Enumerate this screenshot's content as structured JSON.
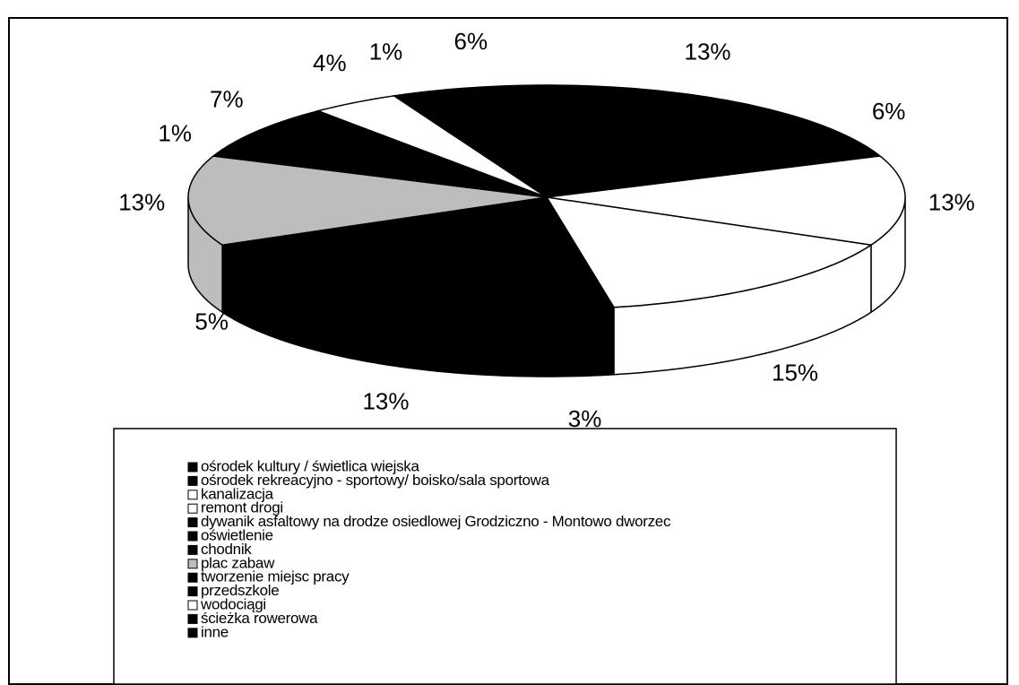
{
  "chart_data": {
    "type": "pie",
    "categories": [
      "ośrodek kultury / świetlica wiejska",
      "ośrodek rekreacyjno - sportowy/ boisko/sala sportowa",
      "kanalizacja",
      "remont drogi",
      "dywanik asfaltowy na drodze osiedlowej Grodziczno - Montowo dworzec",
      "oświetlenie",
      "chodnik",
      "plac zabaw",
      "tworzenie miejsc pracy",
      "przedszkole",
      "wodociągi",
      "ścieżka rowerowa",
      "inne"
    ],
    "values": [
      13,
      6,
      13,
      15,
      3,
      13,
      5,
      13,
      1,
      7,
      4,
      1,
      6
    ],
    "value_labels": [
      "13%",
      "6%",
      "13%",
      "15%",
      "3%",
      "13%",
      "5%",
      "13%",
      "1%",
      "7%",
      "4%",
      "1%",
      "6%"
    ],
    "colors": [
      "#000000",
      "#000000",
      "#ffffff",
      "#ffffff",
      "#000000",
      "#000000",
      "#000000",
      "#bdbdbd",
      "#000000",
      "#000000",
      "#ffffff",
      "#000000",
      "#000000"
    ]
  }
}
